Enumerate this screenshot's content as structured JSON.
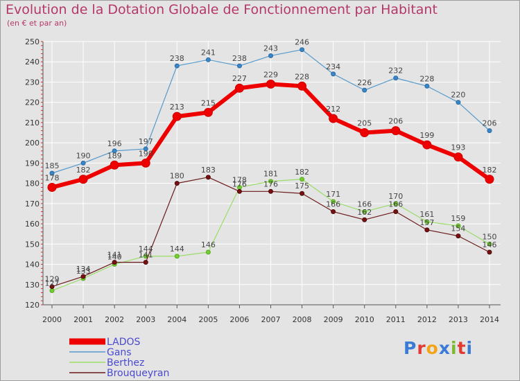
{
  "header": {
    "title": "Evolution de la Dotation Globale de Fonctionnement par Habitant",
    "subtitle": "(en € et par an)"
  },
  "logo": {
    "text": "Proxiti",
    "colors": [
      "#3a7bd5",
      "#e03c31",
      "#f2a41a",
      "#3a7bd5",
      "#7cb82f",
      "#e03c31",
      "#3a7bd5"
    ]
  },
  "chart_data": {
    "type": "line",
    "x": [
      "2000",
      "2001",
      "2002",
      "2003",
      "2004",
      "2005",
      "2006",
      "2007",
      "2008",
      "2009",
      "2010",
      "2011",
      "2012",
      "2013",
      "2014"
    ],
    "ylim": [
      120,
      250
    ],
    "yticks": [
      120,
      130,
      140,
      150,
      160,
      170,
      180,
      190,
      200,
      210,
      220,
      230,
      240,
      250
    ],
    "grid": true,
    "legend_position": "bottom-left",
    "series": [
      {
        "name": "LADOS",
        "color": "#ee0000",
        "values": [
          178,
          182,
          189,
          190,
          213,
          215,
          227,
          229,
          228,
          212,
          205,
          206,
          199,
          193,
          182
        ]
      },
      {
        "name": "Gans",
        "color": "#5599cc",
        "values": [
          185,
          190,
          196,
          197,
          238,
          241,
          238,
          243,
          246,
          234,
          226,
          232,
          228,
          220,
          206
        ]
      },
      {
        "name": "Berthez",
        "color": "#99dd66",
        "values": [
          127,
          133,
          140,
          144,
          144,
          146,
          178,
          181,
          182,
          171,
          166,
          170,
          161,
          159,
          150
        ]
      },
      {
        "name": "Brouqueyran",
        "color": "#6b1a1a",
        "values": [
          129,
          134,
          141,
          141,
          180,
          183,
          176,
          176,
          175,
          166,
          162,
          166,
          157,
          154,
          146
        ]
      }
    ]
  }
}
